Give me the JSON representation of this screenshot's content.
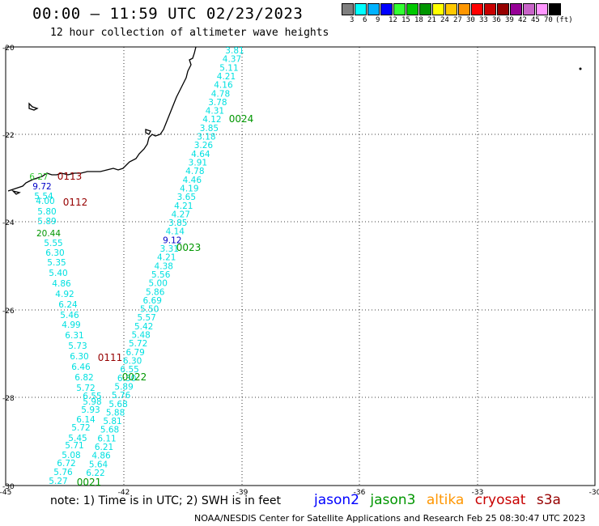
{
  "title": "00:00 — 11:59 UTC 02/23/2023",
  "subtitle": "12 hour collection of altimeter wave heights",
  "legend": {
    "colors": [
      "#7f7f7f",
      "#00ffff",
      "#00b2ff",
      "#0000ff",
      "#32ff32",
      "#00c800",
      "#009600",
      "#ffff00",
      "#ffc800",
      "#ff9600",
      "#ff0000",
      "#c80000",
      "#960000",
      "#960096",
      "#c864c8",
      "#ff96ff",
      "#000000"
    ],
    "labels": [
      "3",
      "6",
      "9",
      "12",
      "15",
      "18",
      "21",
      "24",
      "27",
      "30",
      "33",
      "36",
      "39",
      "42",
      "45",
      "70"
    ],
    "unit": "(ft)"
  },
  "axes": {
    "x_ticks": [
      "-45",
      "-42",
      "-39",
      "-36",
      "-33",
      "-30"
    ],
    "y_ticks": [
      "-20",
      "-22",
      "-24",
      "-26",
      "-28",
      "-30"
    ]
  },
  "tracks": {
    "east": [
      "3.81",
      "4.37",
      "5.11",
      "4.21",
      "4.16",
      "4.78",
      "3.78",
      "4.31",
      "4.12",
      "3.85",
      "3.18",
      "3.26",
      "4.64",
      "3.91",
      "4.78",
      "4.46",
      "4.19",
      "3.65",
      "4.21",
      "4.27",
      "3.85",
      "4.14",
      "9.12",
      "3.31",
      "4.21",
      "4.38",
      "5.56",
      "5.00",
      "5.86",
      "6.69",
      "5.50",
      "5.57",
      "5.42",
      "5.48",
      "5.72",
      "6.79",
      "6.30",
      "6.55",
      "6.30",
      "5.89",
      "5.76",
      "5.68",
      "5.88",
      "5.81",
      "5.68",
      "6.11",
      "6.21",
      "4.86",
      "5.64",
      "6.22"
    ],
    "west": [
      "6.27",
      "9.72",
      "5.54",
      "4.00",
      "5.80",
      "5.89",
      "20.44",
      "5.55",
      "6.30",
      "5.35",
      "5.40",
      "4.86",
      "4.92",
      "6.24",
      "5.46",
      "4.99",
      "6.31",
      "5.73",
      "6.30",
      "6.46",
      "6.82",
      "5.72",
      "6.55",
      "5.98",
      "5.93",
      "6.14",
      "5.72",
      "5.45",
      "5.71",
      "5.08",
      "6.72",
      "5.76",
      "5.27"
    ]
  },
  "time_labels": [
    "0024",
    "0113",
    "0112",
    "0023",
    "0111",
    "0022",
    "0021"
  ],
  "note": "note: 1) Time is in UTC; 2) SWH is in feet",
  "satellites": [
    "jason2",
    "jason3",
    "altika",
    "cryosat",
    "s3a"
  ],
  "footer": "NOAA/NESDIS Center for Satellite Applications and Research   Feb 25 08:30:47 UTC 2023"
}
